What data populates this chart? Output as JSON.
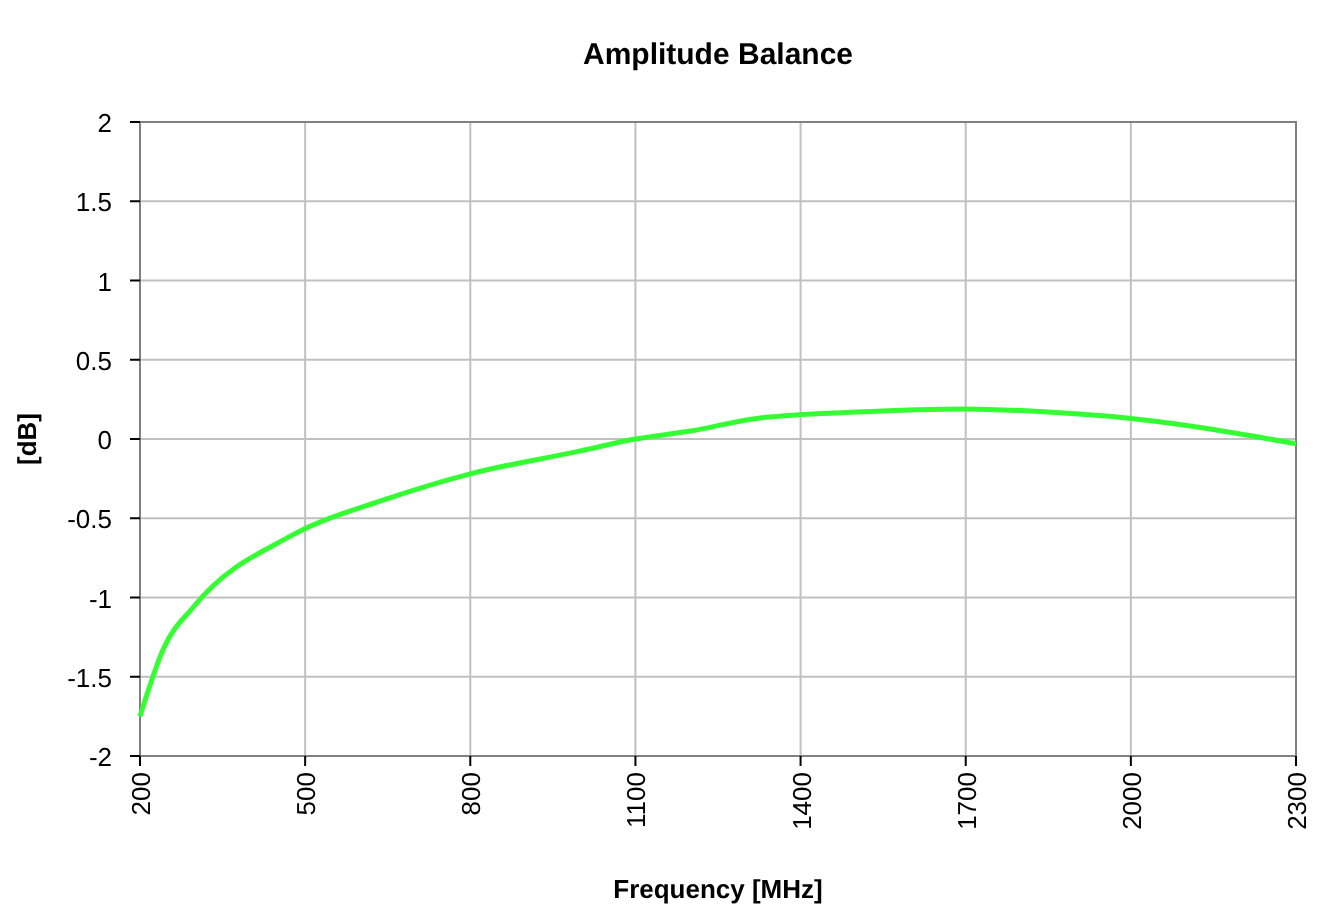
{
  "chart_data": {
    "type": "line",
    "title": "Amplitude Balance",
    "xlabel": "Frequency [MHz]",
    "ylabel": "[dB]",
    "x": [
      200,
      243,
      297,
      475,
      647,
      800,
      994,
      1100,
      1200,
      1320,
      1500,
      1700,
      1850,
      2000,
      2300
    ],
    "series": [
      {
        "color": "#33ff33",
        "values": [
          -1.75,
          -1.32,
          -1.06,
          -0.61,
          -0.38,
          -0.22,
          -0.08,
          0,
          0.05,
          0.13,
          0.17,
          0.19,
          0.17,
          0.13,
          -0.03
        ]
      }
    ],
    "xlim": [
      200,
      2300
    ],
    "xticks": [
      200,
      500,
      800,
      1100,
      1400,
      1700,
      2000,
      2300
    ],
    "ylim": [
      -2,
      2
    ],
    "yticks": [
      -2,
      -1.5,
      -1,
      -0.5,
      0,
      0.5,
      1,
      1.5,
      2
    ],
    "grid": true,
    "marker": "none",
    "line_style": "solid"
  }
}
